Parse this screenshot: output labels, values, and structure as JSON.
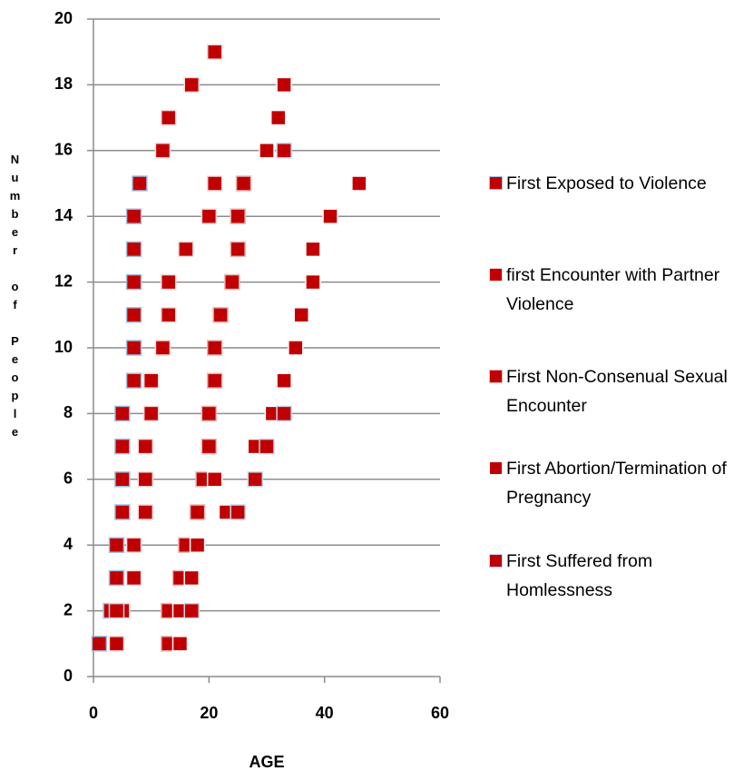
{
  "chart_data": {
    "type": "scatter",
    "xlabel": "AGE",
    "ylabel": "Number of People",
    "xlim": [
      0,
      60
    ],
    "xticks": [
      0,
      20,
      40,
      60
    ],
    "ylim": [
      0,
      20
    ],
    "yticks": [
      0,
      2,
      4,
      6,
      8,
      10,
      12,
      14,
      16,
      18,
      20
    ],
    "grid": true,
    "legend": "right",
    "series": [
      {
        "name": "First Exposed to Violence",
        "color": "#c00000",
        "x": [
          1,
          3,
          4,
          4,
          5,
          5,
          5,
          5,
          7,
          7,
          7,
          7,
          7,
          7,
          8
        ],
        "values": [
          1,
          2,
          3,
          4,
          5,
          6,
          7,
          8,
          9,
          10,
          11,
          12,
          13,
          14,
          15
        ]
      },
      {
        "name": "first Encounter with Partner Violence",
        "color": "#c00000",
        "x": [
          4,
          5,
          7,
          7,
          9,
          9,
          9,
          10,
          10,
          12,
          13,
          13,
          16,
          20,
          21,
          12,
          13,
          17,
          21
        ],
        "values": [
          1,
          2,
          3,
          4,
          5,
          6,
          7,
          8,
          9,
          10,
          11,
          12,
          13,
          14,
          15,
          16,
          17,
          18,
          19
        ]
      },
      {
        "name": "First Non-Consenual Sexual Encounter",
        "color": "#c00000",
        "x": [
          13,
          13,
          15,
          16,
          18,
          19,
          20,
          20,
          21,
          21,
          22,
          24,
          25,
          25,
          26
        ],
        "values": [
          1,
          2,
          3,
          4,
          5,
          6,
          7,
          8,
          9,
          10,
          11,
          12,
          13,
          14,
          15
        ]
      },
      {
        "name": "First Abortion/Termination of Pregnancy",
        "color": "#c00000",
        "x": [
          15,
          15,
          17,
          18,
          23,
          21,
          28,
          31,
          33,
          35,
          36,
          38,
          38,
          41,
          46,
          30,
          32,
          33
        ],
        "values": [
          1,
          2,
          3,
          4,
          5,
          6,
          7,
          8,
          9,
          10,
          11,
          12,
          13,
          14,
          15,
          16,
          17,
          18
        ]
      },
      {
        "name": "First Suffered from Homlessness",
        "color": "#c00000",
        "x": [
          4,
          17,
          25,
          28,
          30,
          33,
          33
        ],
        "values": [
          2,
          2,
          5,
          6,
          7,
          8,
          16
        ]
      }
    ]
  }
}
